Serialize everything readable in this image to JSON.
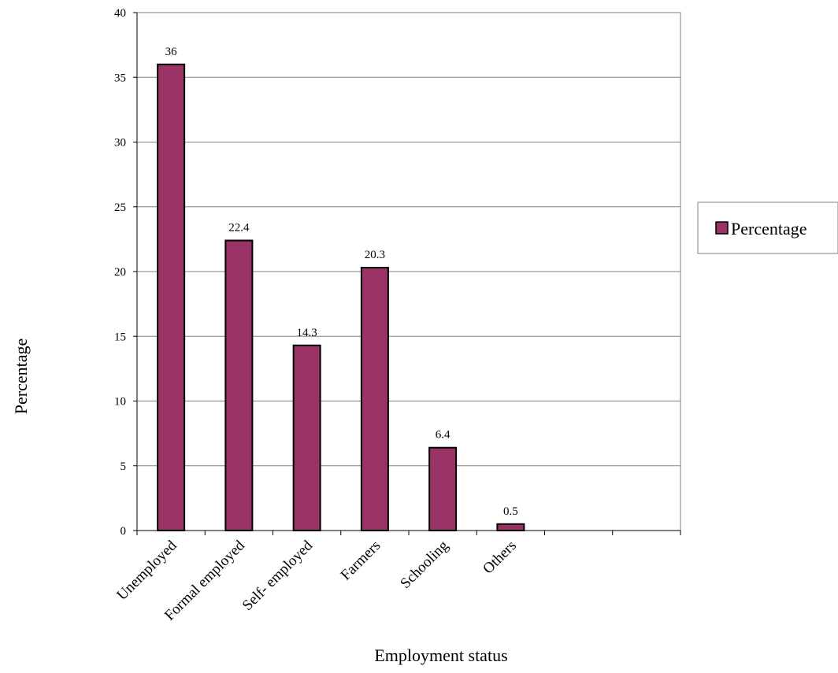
{
  "chart_data": {
    "type": "bar",
    "categories": [
      "Unemployed",
      "Formal employed",
      "Self- employed",
      "Farmers",
      "Schooling",
      "Others",
      "",
      ""
    ],
    "series": [
      {
        "name": "Percentage",
        "values": [
          36,
          22.4,
          14.3,
          20.3,
          6.4,
          0.5,
          null,
          null
        ],
        "color": "#993366"
      }
    ],
    "data_labels": [
      "36",
      "22.4",
      "14.3",
      "20.3",
      "6.4",
      "0.5"
    ],
    "xlabel": "Employment status",
    "ylabel": "Percentage",
    "ylim": [
      0,
      40
    ],
    "yticks": [
      "0",
      "5",
      "10",
      "15",
      "20",
      "25",
      "30",
      "35",
      "40"
    ],
    "grid": "horizontal",
    "legend": {
      "position": "right",
      "entries": [
        "Percentage"
      ]
    },
    "colors": {
      "bar_fill": "#993366",
      "bar_stroke": "#000000",
      "gridline": "#808080"
    }
  }
}
